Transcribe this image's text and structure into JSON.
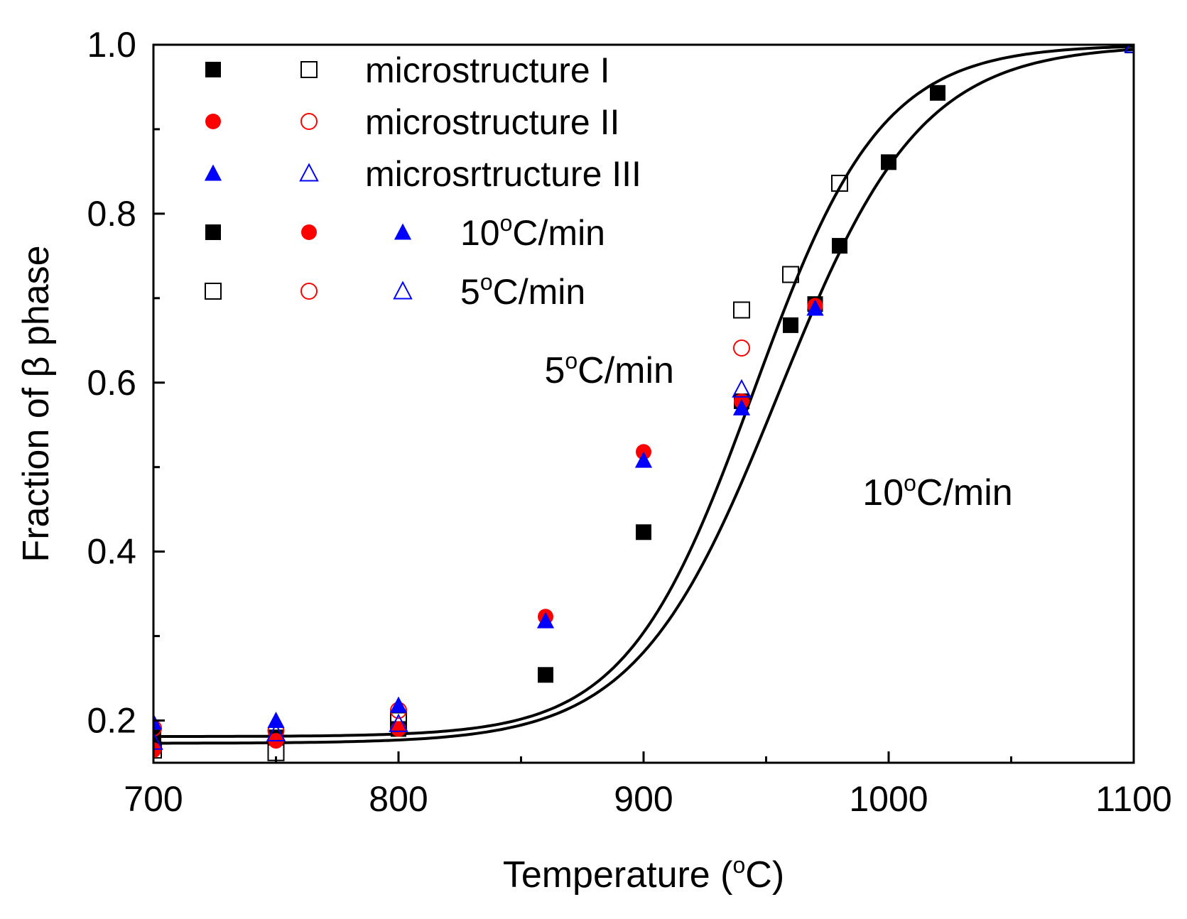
{
  "chart_data": {
    "type": "scatter",
    "xlabel": "Temperature (",
    "xlabel_sup": "o",
    "xlabel_suffix": "C)",
    "ylabel": "Fraction of β phase",
    "xlim": [
      700,
      1100
    ],
    "ylim": [
      0.15,
      1.0
    ],
    "x_ticks": [
      700,
      800,
      900,
      1000,
      1100
    ],
    "x_minor_ticks": [
      750,
      850,
      950,
      1050
    ],
    "y_ticks": [
      0.2,
      0.4,
      0.6,
      0.8,
      1.0
    ],
    "y_tick_labels": [
      "0.2",
      "0.4",
      "0.6",
      "0.8",
      "1.0"
    ],
    "y_minor_ticks": [
      0.3,
      0.5,
      0.7,
      0.9
    ],
    "colors": {
      "black": "#000000",
      "red": "#ff0000",
      "blue": "#0000ff"
    },
    "legend": {
      "position": "top-left",
      "rows": [
        {
          "symbols": [
            [
              "square",
              "black",
              true
            ],
            [
              "square",
              "black",
              false
            ]
          ],
          "label": "microstructure I"
        },
        {
          "symbols": [
            [
              "circle",
              "red",
              true
            ],
            [
              "circle",
              "red",
              false
            ]
          ],
          "label": "microstructure II"
        },
        {
          "symbols": [
            [
              "triangle",
              "blue",
              true
            ],
            [
              "triangle",
              "blue",
              false
            ]
          ],
          "label": "microsrtructure III"
        },
        {
          "symbols": [
            [
              "square",
              "black",
              true
            ],
            [
              "circle",
              "red",
              true
            ],
            [
              "triangle",
              "blue",
              true
            ]
          ],
          "label_pre": "10",
          "label_sup": "o",
          "label_post": "C/min"
        },
        {
          "symbols": [
            [
              "square",
              "black",
              false
            ],
            [
              "circle",
              "red",
              false
            ],
            [
              "triangle",
              "blue",
              false
            ]
          ],
          "label_pre": "5",
          "label_sup": "o",
          "label_post": "C/min"
        }
      ]
    },
    "annotations": [
      {
        "pre": "5",
        "sup": "o",
        "post": "C/min",
        "x": 886,
        "y": 0.6
      },
      {
        "pre": "10",
        "sup": "o",
        "post": "C/min",
        "x": 1020,
        "y": 0.455
      }
    ],
    "series": [
      {
        "name": "microstructure I, 10°C/min",
        "marker": "square",
        "color": "black",
        "filled": true,
        "x": [
          700,
          750,
          800,
          860,
          900,
          940,
          960,
          970,
          980,
          1000,
          1020
        ],
        "y": [
          0.18,
          0.18,
          0.19,
          0.254,
          0.423,
          0.578,
          0.668,
          0.693,
          0.762,
          0.861,
          0.943
        ]
      },
      {
        "name": "microstructure I, 5°C/min",
        "marker": "square",
        "color": "black",
        "filled": false,
        "x": [
          700,
          750,
          800,
          940,
          960,
          980,
          1100
        ],
        "y": [
          0.165,
          0.162,
          0.2,
          0.686,
          0.728,
          0.836,
          1.0
        ]
      },
      {
        "name": "microstructure II, 10°C/min",
        "marker": "circle",
        "color": "red",
        "filled": true,
        "x": [
          700,
          750,
          800,
          860,
          900,
          940,
          970
        ],
        "y": [
          0.165,
          0.176,
          0.19,
          0.323,
          0.518,
          0.578,
          0.691
        ]
      },
      {
        "name": "microstructure II, 5°C/min",
        "marker": "circle",
        "color": "red",
        "filled": false,
        "x": [
          700,
          750,
          800,
          940
        ],
        "y": [
          0.191,
          0.188,
          0.212,
          0.641
        ]
      },
      {
        "name": "microsrtructure III, 10°C/min",
        "marker": "triangle",
        "color": "blue",
        "filled": true,
        "x": [
          700,
          750,
          800,
          860,
          900,
          940,
          970
        ],
        "y": [
          0.198,
          0.2,
          0.218,
          0.318,
          0.508,
          0.57,
          0.688
        ]
      },
      {
        "name": "microsrtructure III, 5°C/min",
        "marker": "triangle",
        "color": "blue",
        "filled": false,
        "x": [
          700,
          750,
          800,
          940,
          1100
        ],
        "y": [
          0.175,
          0.185,
          0.196,
          0.592,
          1.0
        ]
      }
    ],
    "fit_curves": [
      {
        "name": "5°C/min fit",
        "color": "black",
        "x0": 945,
        "width": 26,
        "baseline": 0.181
      },
      {
        "name": "10°C/min fit",
        "color": "black",
        "x0": 955,
        "width": 29,
        "baseline": 0.173
      }
    ]
  }
}
